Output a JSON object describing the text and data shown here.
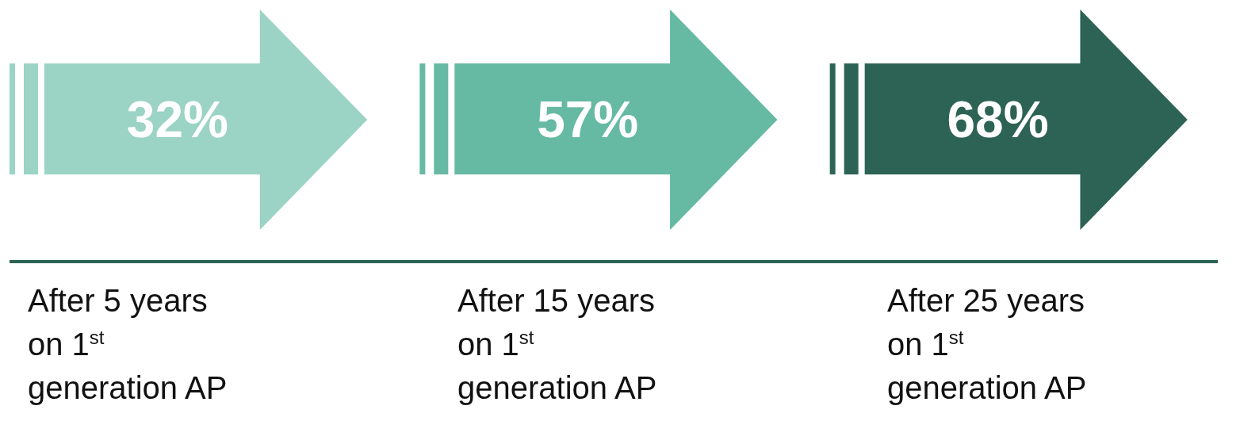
{
  "chart_data": {
    "type": "other",
    "categories": [
      "After 5 years on 1$^{st}$ generation AP",
      "After 15 years on 1$^{st}$ generation AP",
      "After 25 years on 1$^{st}$ generation AP"
    ],
    "values": [
      32,
      57,
      68
    ],
    "value_labels": [
      "32%",
      "57%",
      "68%"
    ],
    "colors": [
      "#9bd3c4",
      "#66b9a3",
      "#2d6354"
    ]
  }
}
